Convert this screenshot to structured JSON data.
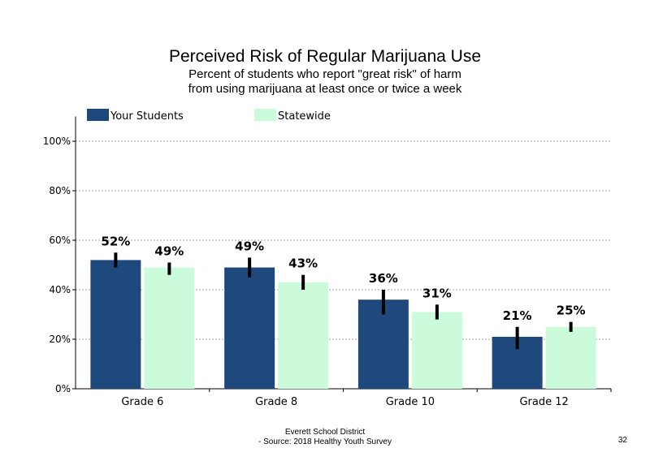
{
  "chart_data": {
    "type": "bar",
    "title": "Perceived Risk of Regular Marijuana Use",
    "subtitle_lines": [
      "Percent of students  who report \"great risk\" of harm",
      "from using marijuana at least once or twice a week"
    ],
    "categories": [
      "Grade 6",
      "Grade 8",
      "Grade 10",
      "Grade 12"
    ],
    "series": [
      {
        "name": "Your Students",
        "color": "#1f497d",
        "values": [
          52,
          49,
          36,
          21
        ],
        "labels": [
          "52%",
          "49%",
          "36%",
          "21%"
        ],
        "error_low": [
          49,
          45,
          30,
          16
        ],
        "error_high": [
          55,
          53,
          40,
          25
        ]
      },
      {
        "name": "Statewide",
        "color": "#ccfbdb",
        "values": [
          49,
          43,
          31,
          25
        ],
        "labels": [
          "49%",
          "43%",
          "31%",
          "25%"
        ],
        "error_low": [
          46,
          40,
          28,
          23
        ],
        "error_high": [
          51,
          46,
          34,
          27
        ]
      }
    ],
    "ylim": [
      0,
      110
    ],
    "yticks": [
      0,
      20,
      40,
      60,
      80,
      100
    ],
    "ytick_labels": [
      "0%",
      "20%",
      "40%",
      "60%",
      "80%",
      "100%"
    ],
    "grid": true,
    "legend": "top-left"
  },
  "footer": {
    "line1": "Everett School District",
    "line2": "- Source: 2018 Healthy  Youth Survey"
  },
  "page_number": "32"
}
